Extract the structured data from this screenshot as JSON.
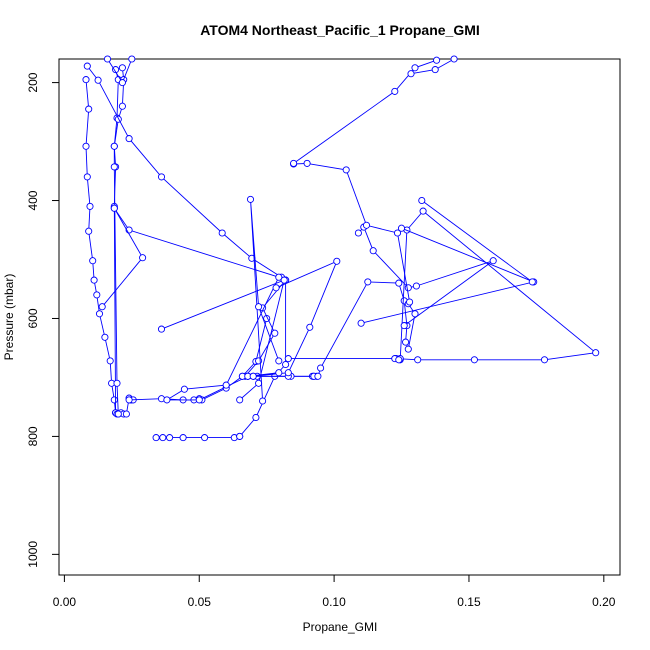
{
  "chart_data": {
    "type": "line",
    "title": "ATOM4 Northeast_Pacific_1 Propane_GMI",
    "xlabel": "Propane_GMI",
    "ylabel": "Pressure (mbar)",
    "xlim": [
      -0.002,
      0.206
    ],
    "ylim": [
      1035,
      160
    ],
    "y_reversed": true,
    "xticks": [
      0.0,
      0.05,
      0.1,
      0.15,
      0.2
    ],
    "xtick_labels": [
      "0.00",
      "0.05",
      "0.10",
      "0.15",
      "0.20"
    ],
    "yticks": [
      200,
      400,
      600,
      800,
      1000
    ],
    "ytick_labels": [
      "200",
      "400",
      "600",
      "800",
      "1000"
    ],
    "grid": false,
    "line_color": "#0000ff",
    "marker": "open-circle",
    "series": [
      {
        "x": [
          0.008,
          0.009,
          0.008,
          0.0085,
          0.0095,
          0.009,
          0.0105,
          0.011,
          0.012,
          0.013,
          0.015,
          0.017,
          0.0175,
          0.0185,
          0.019,
          0.02,
          0.021,
          0.022,
          0.023,
          0.024,
          0.0245,
          0.025,
          0.0255
        ],
        "y": [
          195,
          245,
          308,
          360,
          410,
          452,
          502,
          535,
          560,
          592,
          632,
          672,
          710,
          738,
          760,
          762,
          760,
          762,
          762,
          735,
          738,
          738,
          738
        ]
      },
      {
        "x": [
          0.024,
          0.036,
          0.044,
          0.048,
          0.05,
          0.051,
          0.06,
          0.066,
          0.071,
          0.075
        ],
        "y": [
          738,
          736,
          738,
          738,
          736,
          738,
          718,
          698,
          673,
          600
        ]
      },
      {
        "x": [
          0.019,
          0.02,
          0.0195,
          0.0185,
          0.019,
          0.0185,
          0.019,
          0.0195
        ],
        "y": [
          178,
          195,
          260,
          308,
          343,
          410,
          760,
          762
        ]
      },
      {
        "x": [
          0.0215,
          0.022,
          0.0215,
          0.02,
          0.0185,
          0.0185,
          0.0195,
          0.02
        ],
        "y": [
          175,
          195,
          240,
          262,
          308,
          343,
          710,
          762
        ]
      },
      {
        "x": [
          0.034,
          0.0365,
          0.039,
          0.044,
          0.052,
          0.063,
          0.065
        ],
        "y": [
          802,
          802,
          802,
          802,
          802,
          802,
          800
        ]
      },
      {
        "x": [
          0.065,
          0.071,
          0.078,
          0.082,
          0.082
        ],
        "y": [
          800,
          768,
          698,
          678,
          535
        ]
      },
      {
        "x": [
          0.082,
          0.0735,
          0.078,
          0.072,
          0.067
        ],
        "y": [
          535,
          582,
          625,
          672,
          698
        ]
      },
      {
        "x": [
          0.0085,
          0.0125,
          0.024,
          0.036,
          0.0585,
          0.0695,
          0.0805
        ],
        "y": [
          172,
          196,
          295,
          360,
          455,
          498,
          530
        ]
      },
      {
        "x": [
          0.0185,
          0.024,
          0.0795,
          0.06,
          0.0445,
          0.038,
          0.05,
          0.068,
          0.0715,
          0.0925,
          0.092,
          0.0935
        ],
        "y": [
          413,
          450,
          530,
          713,
          720,
          738,
          738,
          698,
          698,
          698,
          698,
          698
        ]
      },
      {
        "x": [
          0.0925,
          0.084,
          0.083,
          0.07,
          0.068,
          0.066
        ],
        "y": [
          698,
          698,
          698,
          698,
          698,
          698
        ]
      },
      {
        "x": [
          0.094,
          0.095,
          0.1125,
          0.124,
          0.126,
          0.127,
          0.1265,
          0.1275,
          0.13,
          0.1275
        ],
        "y": [
          698,
          684,
          538,
          540,
          570,
          612,
          640,
          652,
          592,
          575
        ]
      },
      {
        "x": [
          0.014,
          0.029,
          0.0185
        ],
        "y": [
          580,
          497,
          413
        ]
      },
      {
        "x": [
          0.036,
          0.0815,
          0.072,
          0.065
        ],
        "y": [
          618,
          535,
          710,
          738
        ]
      },
      {
        "x": [
          0.0795,
          0.068,
          0.07,
          0.083,
          0.091,
          0.101,
          0.0785
        ],
        "y": [
          692,
          698,
          698,
          692,
          615,
          503,
          548
        ]
      },
      {
        "x": [
          0.0795,
          0.072,
          0.069,
          0.0735
        ],
        "y": [
          672,
          580,
          398,
          740
        ]
      },
      {
        "x": [
          0.083,
          0.123,
          0.131,
          0.152,
          0.178,
          0.197,
          0.133,
          0.127,
          0.1245,
          0.1225,
          0.1245,
          0.124
        ],
        "y": [
          668,
          668,
          670,
          670,
          670,
          658,
          418,
          450,
          670,
          668,
          668,
          670
        ]
      },
      {
        "x": [
          0.11,
          0.174,
          0.125
        ],
        "y": [
          608,
          538,
          447
        ]
      },
      {
        "x": [
          0.109,
          0.111,
          0.1145,
          0.1275,
          0.1305,
          0.159,
          0.126
        ],
        "y": [
          455,
          445,
          485,
          548,
          545,
          502,
          612
        ]
      },
      {
        "x": [
          0.1325,
          0.1735
        ],
        "y": [
          400,
          538
        ]
      },
      {
        "x": [
          0.085,
          0.09,
          0.1045,
          0.112,
          0.1235,
          0.128
        ],
        "y": [
          338,
          337,
          348,
          442,
          455,
          572
        ]
      },
      {
        "x": [
          0.085,
          0.1225,
          0.13,
          0.138
        ],
        "y": [
          337,
          215,
          175,
          162
        ]
      },
      {
        "x": [
          0.1285,
          0.1375,
          0.1445
        ],
        "y": [
          185,
          178,
          160
        ]
      },
      {
        "x": [
          0.016,
          0.0215,
          0.025
        ],
        "y": [
          160,
          200,
          160
        ]
      }
    ]
  }
}
